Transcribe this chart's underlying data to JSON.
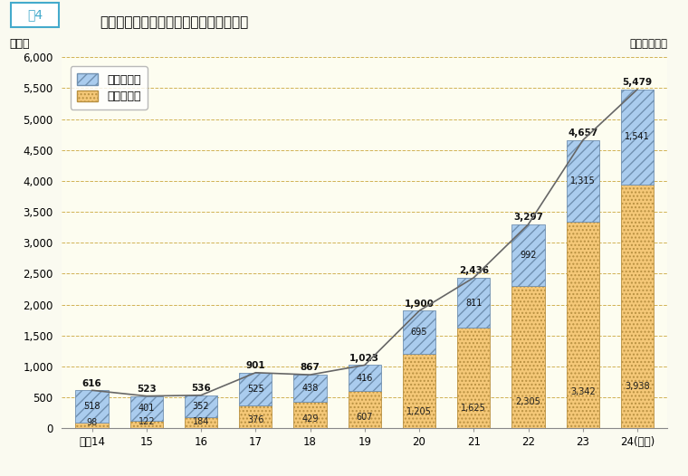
{
  "years": [
    "平成14",
    "15",
    "16",
    "17",
    "18",
    "19",
    "20",
    "21",
    "22",
    "23",
    "24(年度)"
  ],
  "fulltime": [
    518,
    401,
    352,
    525,
    438,
    416,
    695,
    811,
    992,
    1315,
    1541
  ],
  "parttime": [
    98,
    122,
    184,
    376,
    429,
    607,
    1205,
    1625,
    2305,
    3342,
    3938
  ],
  "totals": [
    616,
    523,
    536,
    901,
    867,
    1023,
    1900,
    2436,
    3297,
    4657,
    5479
  ],
  "fulltime_labels": [
    "518",
    "401",
    "352",
    "525",
    "438",
    "416",
    "695",
    "811",
    "992",
    "1,315",
    "1,541"
  ],
  "parttime_labels": [
    "98",
    "122",
    "184",
    "376",
    "429",
    "607",
    "1,205",
    "1,625",
    "2,305",
    "3,342",
    "3,938"
  ],
  "total_labels": [
    "616",
    "523",
    "536",
    "901",
    "867",
    "1,023",
    "1,900",
    "2,436",
    "3,297",
    "4,657",
    "5,479"
  ],
  "fulltime_color": "#aaccee",
  "fulltime_hatch": "///",
  "parttime_color": "#f5c878",
  "parttime_hatch": "....",
  "line_color": "#666666",
  "bg_color": "#fdfdf0",
  "fig_bg_color": "#fafaf0",
  "title_main": "年度別再任用職員数（給与法適用職員）",
  "title_box_label": "围4",
  "ylabel": "（人）",
  "unit_label": "（単位：人）",
  "ylim": [
    0,
    6000
  ],
  "yticks": [
    0,
    500,
    1000,
    1500,
    2000,
    2500,
    3000,
    3500,
    4000,
    4500,
    5000,
    5500,
    6000
  ],
  "legend_fulltime": "フルタイム",
  "legend_parttime": "短時間勤務",
  "grid_color": "#ccaa44",
  "title_box_edge_color": "#44aacc",
  "title_box_text_color": "#44aacc"
}
